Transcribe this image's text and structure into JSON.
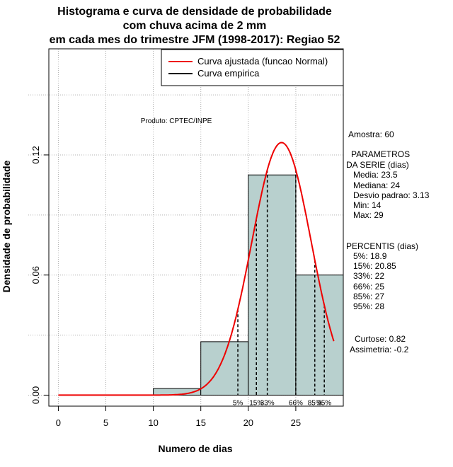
{
  "chart_data": {
    "type": "histogram",
    "title_lines": [
      "Histograma e curva de densidade de probabilidade",
      "com chuva acima de 2 mm",
      "em cada mes do trimestre JFM (1998-2017): Regiao 52"
    ],
    "xlabel": "Numero de dias",
    "ylabel": "Densidade de probabilidade",
    "xlim": [
      -1,
      30
    ],
    "ylim": [
      -0.0055,
      0.173
    ],
    "xticks": [
      0,
      5,
      10,
      15,
      20,
      25
    ],
    "yticks": [
      0.0,
      0.06,
      0.12
    ],
    "ytick_labels": [
      "0.00",
      "0.06",
      "0.12"
    ],
    "grid_x": [
      0,
      5,
      10,
      15,
      20,
      25
    ],
    "grid_y": [
      0.0,
      0.03,
      0.06,
      0.09,
      0.12,
      0.15
    ],
    "bins": [
      {
        "x0": 10,
        "x1": 15,
        "density": 0.0033
      },
      {
        "x0": 15,
        "x1": 20,
        "density": 0.0267
      },
      {
        "x0": 20,
        "x1": 25,
        "density": 0.11
      },
      {
        "x0": 25,
        "x1": 30,
        "density": 0.06
      }
    ],
    "bar_color": "#b8d0ce",
    "curve_color": "#ee0000",
    "normal_fit": {
      "mean": 23.5,
      "sd": 3.13,
      "scale": 0.99,
      "x_from": 0,
      "x_to": 29
    },
    "percentile_lines": [
      {
        "label": "5%",
        "x": 18.9
      },
      {
        "label": "15%",
        "x": 20.85
      },
      {
        "label": "33%",
        "x": 22
      },
      {
        "label": "66%",
        "x": 25
      },
      {
        "label": "85%",
        "x": 27
      },
      {
        "label": "95%",
        "x": 28
      }
    ],
    "legend": {
      "placement": "top-right",
      "entries": [
        {
          "label": "Curva ajustada (funcao Normal)",
          "color": "#ee0000"
        },
        {
          "label": "Curva empirica",
          "color": "#000000"
        }
      ]
    },
    "annotations": {
      "produto": "Produto: CPTEC/INPE",
      "stats": [
        "Amostra: 60",
        "PARAMETROS",
        "DA SERIE (dias)",
        "Media: 23.5",
        "Mediana: 24",
        "Desvio padrao: 3.13",
        "Min: 14",
        "Max: 29",
        "PERCENTIS (dias)",
        "5%: 18.9",
        "15%: 20.85",
        "33%: 22",
        "66%: 25",
        "85%: 27",
        "95%: 28",
        "Curtose: 0.82",
        "Assimetria: -0.2"
      ]
    }
  }
}
